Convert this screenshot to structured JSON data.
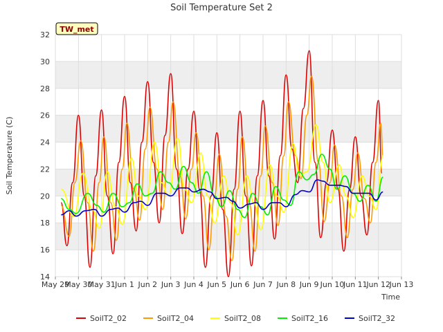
{
  "chart_data": {
    "type": "line",
    "title": "Soil Temperature Set 2",
    "xlabel": "Time",
    "ylabel": "Soil Temperature (C)",
    "badge": "TW_met",
    "xlim": [
      0,
      15
    ],
    "ylim": [
      14,
      32
    ],
    "x_ticks": [
      {
        "x": 0,
        "label": "May 29"
      },
      {
        "x": 1,
        "label": "May 30"
      },
      {
        "x": 2,
        "label": "May 31"
      },
      {
        "x": 3,
        "label": "Jun 1"
      },
      {
        "x": 4,
        "label": "Jun 2"
      },
      {
        "x": 5,
        "label": "Jun 3"
      },
      {
        "x": 6,
        "label": "Jun 4"
      },
      {
        "x": 7,
        "label": "Jun 5"
      },
      {
        "x": 8,
        "label": "Jun 6"
      },
      {
        "x": 9,
        "label": "Jun 7"
      },
      {
        "x": 10,
        "label": "Jun 8"
      },
      {
        "x": 11,
        "label": "Jun 9"
      },
      {
        "x": 12,
        "label": "Jun 10"
      },
      {
        "x": 13,
        "label": "Jun 11"
      },
      {
        "x": 14,
        "label": "Jun 12"
      },
      {
        "x": 15,
        "label": "Jun 13"
      }
    ],
    "y_ticks": [
      14,
      16,
      18,
      20,
      22,
      24,
      26,
      28,
      30,
      32
    ],
    "grid": true,
    "legend_position": "bottom",
    "series": [
      {
        "name": "SoilT2_02",
        "color": "#dd0000",
        "points": [
          [
            0.25,
            19.5
          ],
          [
            0.5,
            16.3
          ],
          [
            0.75,
            21.0
          ],
          [
            1.0,
            26.0
          ],
          [
            1.25,
            20.0
          ],
          [
            1.5,
            14.7
          ],
          [
            1.75,
            21.5
          ],
          [
            2.0,
            26.4
          ],
          [
            2.25,
            20.0
          ],
          [
            2.5,
            15.7
          ],
          [
            2.75,
            22.5
          ],
          [
            3.0,
            27.4
          ],
          [
            3.25,
            21.0
          ],
          [
            3.5,
            17.4
          ],
          [
            3.75,
            24.0
          ],
          [
            4.0,
            28.5
          ],
          [
            4.25,
            22.5
          ],
          [
            4.5,
            18.0
          ],
          [
            4.75,
            24.5
          ],
          [
            5.0,
            29.1
          ],
          [
            5.25,
            22.0
          ],
          [
            5.5,
            17.2
          ],
          [
            5.75,
            22.0
          ],
          [
            6.0,
            26.3
          ],
          [
            6.25,
            20.5
          ],
          [
            6.5,
            14.7
          ],
          [
            6.75,
            20.0
          ],
          [
            7.0,
            24.7
          ],
          [
            7.25,
            19.0
          ],
          [
            7.5,
            14.0
          ],
          [
            7.75,
            20.5
          ],
          [
            8.0,
            26.3
          ],
          [
            8.25,
            20.0
          ],
          [
            8.5,
            14.8
          ],
          [
            8.75,
            21.5
          ],
          [
            9.0,
            27.1
          ],
          [
            9.25,
            21.5
          ],
          [
            9.5,
            16.8
          ],
          [
            9.75,
            23.0
          ],
          [
            10.0,
            29.0
          ],
          [
            10.25,
            23.5
          ],
          [
            10.5,
            21.0
          ],
          [
            10.75,
            26.5
          ],
          [
            11.0,
            30.8
          ],
          [
            11.25,
            22.5
          ],
          [
            11.5,
            16.9
          ],
          [
            11.75,
            21.0
          ],
          [
            12.0,
            24.9
          ],
          [
            12.25,
            20.5
          ],
          [
            12.5,
            15.9
          ],
          [
            12.75,
            20.5
          ],
          [
            13.0,
            24.4
          ],
          [
            13.25,
            20.0
          ],
          [
            13.5,
            17.1
          ],
          [
            13.75,
            22.5
          ],
          [
            14.0,
            27.1
          ],
          [
            14.15,
            21.7
          ]
        ]
      },
      {
        "name": "SoilT2_04",
        "color": "#ff9900",
        "points": [
          [
            0.25,
            19.3
          ],
          [
            0.6,
            17.0
          ],
          [
            0.85,
            21.0
          ],
          [
            1.1,
            24.1
          ],
          [
            1.4,
            19.5
          ],
          [
            1.65,
            15.9
          ],
          [
            1.9,
            21.0
          ],
          [
            2.1,
            24.4
          ],
          [
            2.4,
            19.5
          ],
          [
            2.65,
            16.7
          ],
          [
            2.9,
            22.0
          ],
          [
            3.1,
            25.4
          ],
          [
            3.4,
            20.5
          ],
          [
            3.65,
            18.2
          ],
          [
            3.9,
            23.5
          ],
          [
            4.1,
            26.6
          ],
          [
            4.4,
            22.0
          ],
          [
            4.65,
            19.0
          ],
          [
            4.9,
            24.0
          ],
          [
            5.1,
            27.0
          ],
          [
            5.4,
            21.5
          ],
          [
            5.65,
            18.3
          ],
          [
            5.9,
            22.0
          ],
          [
            6.1,
            24.7
          ],
          [
            6.4,
            20.0
          ],
          [
            6.65,
            16.0
          ],
          [
            6.9,
            20.0
          ],
          [
            7.1,
            23.1
          ],
          [
            7.4,
            18.5
          ],
          [
            7.65,
            15.2
          ],
          [
            7.9,
            20.5
          ],
          [
            8.1,
            24.4
          ],
          [
            8.4,
            19.5
          ],
          [
            8.65,
            15.9
          ],
          [
            8.9,
            21.5
          ],
          [
            9.1,
            25.2
          ],
          [
            9.4,
            21.0
          ],
          [
            9.65,
            17.8
          ],
          [
            9.9,
            23.0
          ],
          [
            10.1,
            27.0
          ],
          [
            10.4,
            23.0
          ],
          [
            10.65,
            21.3
          ],
          [
            10.9,
            26.0
          ],
          [
            11.1,
            28.9
          ],
          [
            11.4,
            22.5
          ],
          [
            11.65,
            18.1
          ],
          [
            11.9,
            21.0
          ],
          [
            12.1,
            23.8
          ],
          [
            12.4,
            20.0
          ],
          [
            12.65,
            16.9
          ],
          [
            12.9,
            20.5
          ],
          [
            13.1,
            23.2
          ],
          [
            13.4,
            19.8
          ],
          [
            13.65,
            18.0
          ],
          [
            13.9,
            22.5
          ],
          [
            14.1,
            25.4
          ],
          [
            14.2,
            23.0
          ]
        ]
      },
      {
        "name": "SoilT2_08",
        "color": "#ffff00",
        "points": [
          [
            0.25,
            20.5
          ],
          [
            0.8,
            18.5
          ],
          [
            1.2,
            21.7
          ],
          [
            1.6,
            19.0
          ],
          [
            1.9,
            17.6
          ],
          [
            2.25,
            21.8
          ],
          [
            2.6,
            19.2
          ],
          [
            2.9,
            17.9
          ],
          [
            3.3,
            22.8
          ],
          [
            3.6,
            20.0
          ],
          [
            3.9,
            19.0
          ],
          [
            4.3,
            24.0
          ],
          [
            4.6,
            21.0
          ],
          [
            4.9,
            20.0
          ],
          [
            5.3,
            24.3
          ],
          [
            5.6,
            20.5
          ],
          [
            5.9,
            19.5
          ],
          [
            6.3,
            23.2
          ],
          [
            6.6,
            20.0
          ],
          [
            6.9,
            18.0
          ],
          [
            7.3,
            21.5
          ],
          [
            7.6,
            19.5
          ],
          [
            7.9,
            17.1
          ],
          [
            8.3,
            21.5
          ],
          [
            8.6,
            19.5
          ],
          [
            8.9,
            17.5
          ],
          [
            9.3,
            22.3
          ],
          [
            9.6,
            20.0
          ],
          [
            9.9,
            18.8
          ],
          [
            10.3,
            23.9
          ],
          [
            10.6,
            21.5
          ],
          [
            10.9,
            21.8
          ],
          [
            11.3,
            25.3
          ],
          [
            11.6,
            22.5
          ],
          [
            11.9,
            19.5
          ],
          [
            12.3,
            22.3
          ],
          [
            12.6,
            20.0
          ],
          [
            12.9,
            18.4
          ],
          [
            13.3,
            21.5
          ],
          [
            13.6,
            20.0
          ],
          [
            13.9,
            19.0
          ],
          [
            14.2,
            23.0
          ]
        ]
      },
      {
        "name": "SoilT2_16",
        "color": "#00ee00",
        "points": [
          [
            0.25,
            19.8
          ],
          [
            0.6,
            19.0
          ],
          [
            0.9,
            18.7
          ],
          [
            1.4,
            20.2
          ],
          [
            1.8,
            19.3
          ],
          [
            2.1,
            18.8
          ],
          [
            2.5,
            20.2
          ],
          [
            2.9,
            19.2
          ],
          [
            3.2,
            19.5
          ],
          [
            3.55,
            20.9
          ],
          [
            3.9,
            20.0
          ],
          [
            4.2,
            20.2
          ],
          [
            4.55,
            21.8
          ],
          [
            4.9,
            21.0
          ],
          [
            5.2,
            20.5
          ],
          [
            5.55,
            22.2
          ],
          [
            5.9,
            21.0
          ],
          [
            6.2,
            20.2
          ],
          [
            6.55,
            21.8
          ],
          [
            6.9,
            20.0
          ],
          [
            7.2,
            19.2
          ],
          [
            7.55,
            20.4
          ],
          [
            7.9,
            19.0
          ],
          [
            8.2,
            18.4
          ],
          [
            8.55,
            20.2
          ],
          [
            8.9,
            19.2
          ],
          [
            9.2,
            18.6
          ],
          [
            9.55,
            20.7
          ],
          [
            9.9,
            19.7
          ],
          [
            10.2,
            19.3
          ],
          [
            10.55,
            21.8
          ],
          [
            10.9,
            21.2
          ],
          [
            11.2,
            21.6
          ],
          [
            11.55,
            23.1
          ],
          [
            11.9,
            22.0
          ],
          [
            12.2,
            20.5
          ],
          [
            12.55,
            21.5
          ],
          [
            12.9,
            20.2
          ],
          [
            13.2,
            19.6
          ],
          [
            13.55,
            20.8
          ],
          [
            13.9,
            19.6
          ],
          [
            14.2,
            21.4
          ]
        ]
      },
      {
        "name": "SoilT2_32",
        "color": "#0000cc",
        "points": [
          [
            0.25,
            18.6
          ],
          [
            0.6,
            18.9
          ],
          [
            0.9,
            18.5
          ],
          [
            1.3,
            18.9
          ],
          [
            1.7,
            19.0
          ],
          [
            2.0,
            18.5
          ],
          [
            2.4,
            19.0
          ],
          [
            2.7,
            19.1
          ],
          [
            3.0,
            18.8
          ],
          [
            3.4,
            19.5
          ],
          [
            3.7,
            19.6
          ],
          [
            4.0,
            19.3
          ],
          [
            4.4,
            20.2
          ],
          [
            4.7,
            20.2
          ],
          [
            5.0,
            20.0
          ],
          [
            5.4,
            20.6
          ],
          [
            5.7,
            20.6
          ],
          [
            6.0,
            20.3
          ],
          [
            6.4,
            20.5
          ],
          [
            6.7,
            20.3
          ],
          [
            7.0,
            19.8
          ],
          [
            7.4,
            19.9
          ],
          [
            7.7,
            19.6
          ],
          [
            8.0,
            19.1
          ],
          [
            8.4,
            19.4
          ],
          [
            8.7,
            19.5
          ],
          [
            9.0,
            19.0
          ],
          [
            9.4,
            19.5
          ],
          [
            9.7,
            19.5
          ],
          [
            10.0,
            19.2
          ],
          [
            10.4,
            20.1
          ],
          [
            10.7,
            20.4
          ],
          [
            11.0,
            20.3
          ],
          [
            11.35,
            21.2
          ],
          [
            11.6,
            21.1
          ],
          [
            11.9,
            20.8
          ],
          [
            12.3,
            20.8
          ],
          [
            12.6,
            20.7
          ],
          [
            12.9,
            20.2
          ],
          [
            13.3,
            20.2
          ],
          [
            13.6,
            20.2
          ],
          [
            13.9,
            19.7
          ],
          [
            14.2,
            20.3
          ]
        ]
      }
    ]
  }
}
